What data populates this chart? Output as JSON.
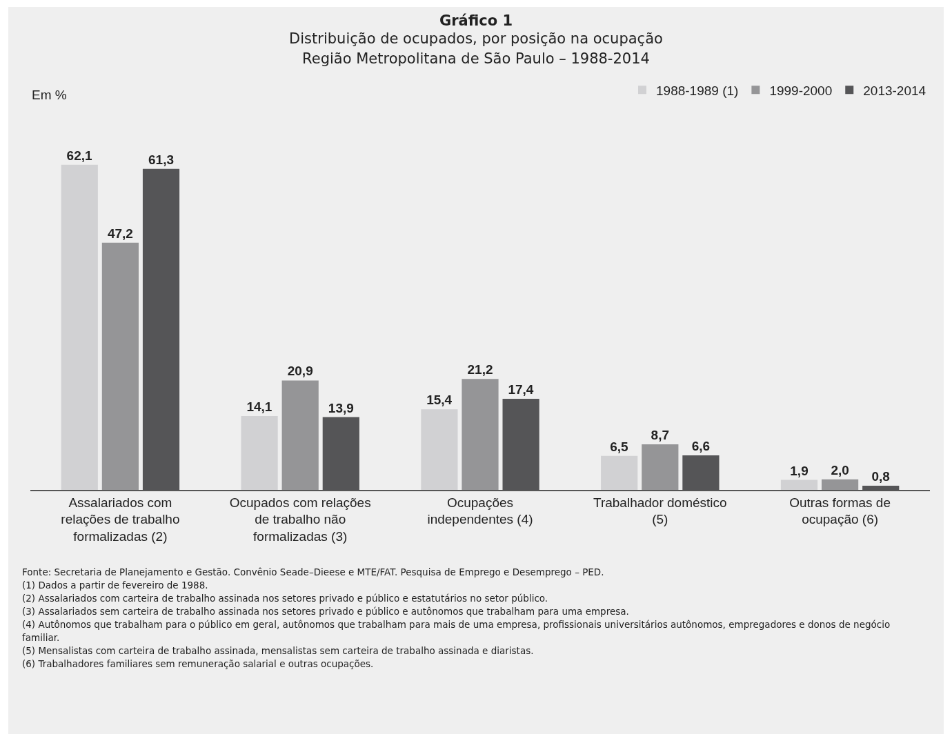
{
  "chart_data": {
    "type": "bar",
    "title": "Gráfico 1",
    "subtitle": "Distribuição de ocupados, por posição na ocupação\nRegião Metropolitana de São Paulo – 1988-2014",
    "ylabel": "Em %",
    "categories": [
      "Assalariados com relações de trabalho formalizadas (2)",
      "Ocupados com relações de trabalho não formalizadas (3)",
      "Ocupações independentes (4)",
      "Trabalhador doméstico (5)",
      "Outras formas de ocupação (6)"
    ],
    "series": [
      {
        "name": "1988-1989 (1)",
        "color": "#d1d1d3",
        "values": [
          62.1,
          14.1,
          15.4,
          6.5,
          1.9
        ],
        "value_labels": [
          "62,1",
          "14,1",
          "15,4",
          "6,5",
          "1,9"
        ]
      },
      {
        "name": "1999-2000",
        "color": "#959597",
        "values": [
          47.2,
          20.9,
          21.2,
          8.7,
          2.0
        ],
        "value_labels": [
          "47,2",
          "20,9",
          "21,2",
          "8,7",
          "2,0"
        ]
      },
      {
        "name": "2013-2014",
        "color": "#555557",
        "values": [
          61.3,
          13.9,
          17.4,
          6.6,
          0.8
        ],
        "value_labels": [
          "61,3",
          "13,9",
          "17,4",
          "6,6",
          "0,8"
        ]
      }
    ],
    "tick_labels": "x",
    "legend": "top right",
    "annotations": [
      "Fonte: Secretaria de Planejamento e Gestão. Convênio Seade–Dieese e MTE/FAT. Pesquisa de Emprego e Desemprego – PED.",
      "(1)  Dados a partir de fevereiro de 1988.",
      "(2)  Assalariados com carteira de trabalho assinada nos setores privado e público e estatutários no setor público.",
      "(3)  Assalariados sem carteira de trabalho assinada nos setores privado e público e autônomos que trabalham para uma empresa.",
      "(4)  Autônomos que trabalham para o público em geral, autônomos que trabalham para mais de uma empresa, profissionais universitários autônomos, empregadores e donos de negócio familiar.",
      "(5)  Mensalistas com carteira de trabalho assinada, mensalistas sem carteira de trabalho assinada e diaristas.",
      "(6)  Trabalhadores familiares sem remuneração salarial e outras ocupações."
    ]
  }
}
